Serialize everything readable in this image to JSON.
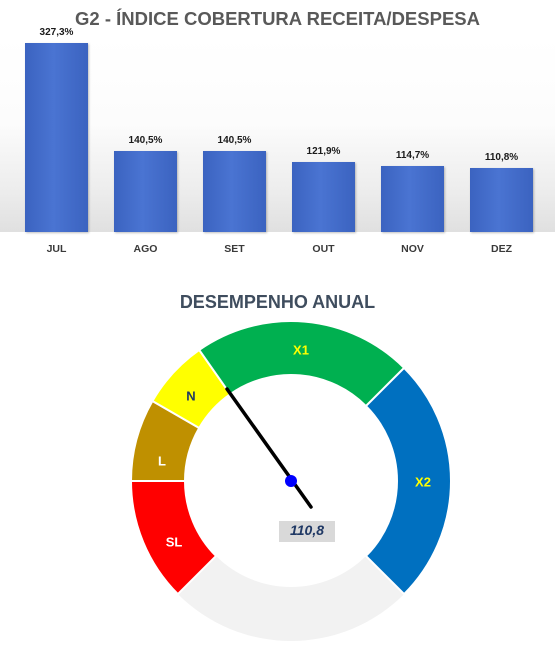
{
  "chart_data": [
    {
      "type": "bar",
      "title": "G2 - ÍNDICE COBERTURA RECEITA/DESPESA",
      "categories": [
        "JUL",
        "AGO",
        "SET",
        "OUT",
        "NOV",
        "DEZ"
      ],
      "values": [
        327.3,
        140.5,
        140.5,
        121.9,
        114.7,
        110.8
      ],
      "data_labels": [
        "327,3%",
        "140,5%",
        "140,5%",
        "121,9%",
        "114,7%",
        "110,8%"
      ],
      "unit": "%",
      "ylim": [
        0,
        340
      ],
      "grid": false,
      "bar_color": "#4472c4"
    },
    {
      "type": "gauge",
      "title": "DESEMPENHO ANUAL",
      "value": 110.8,
      "value_label": "110,8",
      "zones": [
        {
          "label": "SL",
          "color": "#ff0000",
          "label_color": "#ffffff"
        },
        {
          "label": "L",
          "color": "#bf9000",
          "label_color": "#ffffff"
        },
        {
          "label": "N",
          "color": "#ffff00",
          "label_color": "#1f3864"
        },
        {
          "label": "X1",
          "color": "#00b050",
          "label_color": "#ffff00"
        },
        {
          "label": "X2",
          "color": "#0070c0",
          "label_color": "#ffff00"
        }
      ],
      "empty_color": "#f2f2f2",
      "needle_color": "#000000",
      "pivot_color": "#0000ff"
    }
  ]
}
